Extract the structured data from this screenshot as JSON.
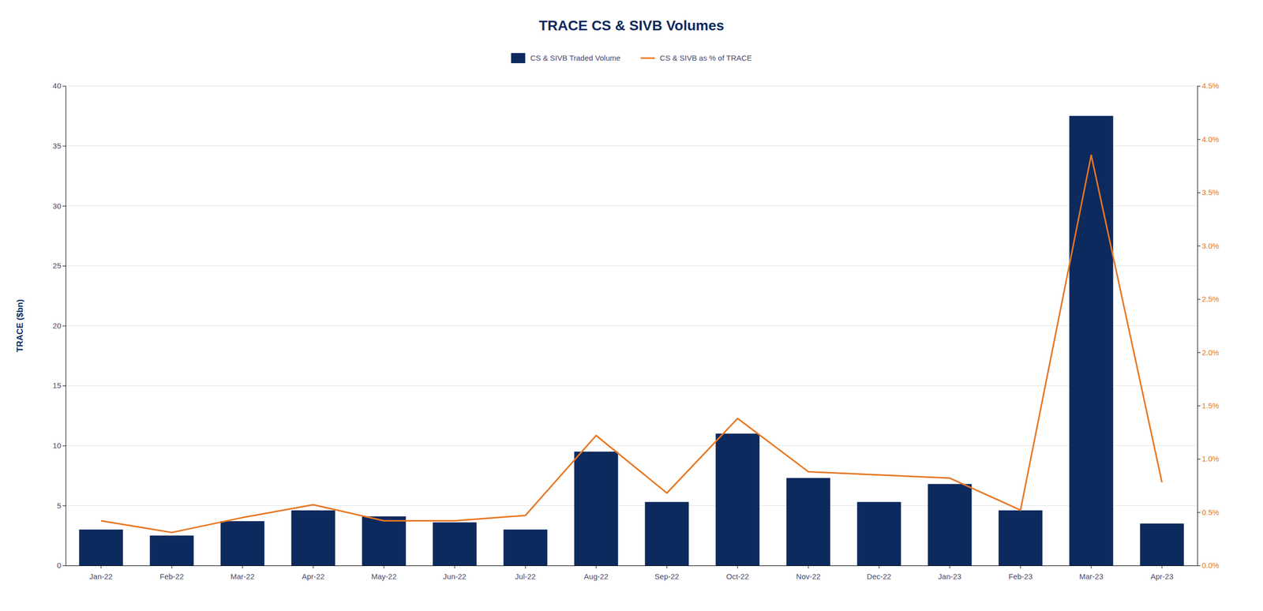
{
  "chart_data": {
    "type": "bar",
    "title": "TRACE CS & SIVB Volumes",
    "ylabel": "TRACE ($bn)",
    "categories": [
      "Jan-22",
      "Feb-22",
      "Mar-22",
      "Apr-22",
      "May-22",
      "Jun-22",
      "Jul-22",
      "Aug-22",
      "Sep-22",
      "Oct-22",
      "Nov-22",
      "Dec-22",
      "Jan-23",
      "Feb-23",
      "Mar-23",
      "Apr-23"
    ],
    "series": [
      {
        "name": "CS & SIVB Traded Volume",
        "type": "bar",
        "color": "#0d2a5e",
        "values": [
          3.0,
          2.5,
          3.7,
          4.6,
          4.1,
          3.6,
          3.0,
          9.5,
          5.3,
          11.0,
          7.3,
          5.3,
          6.8,
          4.6,
          37.5,
          3.5
        ]
      },
      {
        "name": "CS & SIVB as % of TRACE",
        "type": "line",
        "axis": "y2",
        "color": "#e87722",
        "values": [
          0.42,
          0.31,
          0.45,
          0.57,
          0.42,
          0.42,
          0.47,
          1.22,
          0.68,
          1.38,
          0.88,
          0.85,
          0.82,
          0.52,
          3.85,
          0.78
        ]
      }
    ],
    "ylim": [
      0,
      40
    ],
    "yticks": [
      0,
      5,
      10,
      15,
      20,
      25,
      30,
      35,
      40
    ],
    "y2lim": [
      0,
      4.5
    ],
    "y2ticks": [
      {
        "value": 0.0,
        "label": "0.0%"
      },
      {
        "value": 0.5,
        "label": "0.5%"
      },
      {
        "value": 1.0,
        "label": "1.0%"
      },
      {
        "value": 1.5,
        "label": "1.5%"
      },
      {
        "value": 2.0,
        "label": "2.0%"
      },
      {
        "value": 2.5,
        "label": "2.5%"
      },
      {
        "value": 3.0,
        "label": "3.0%"
      },
      {
        "value": 3.5,
        "label": "3.5%"
      },
      {
        "value": 4.0,
        "label": "4.0%"
      },
      {
        "value": 4.5,
        "label": "4.5%"
      }
    ],
    "grid": true,
    "legend": "top"
  }
}
